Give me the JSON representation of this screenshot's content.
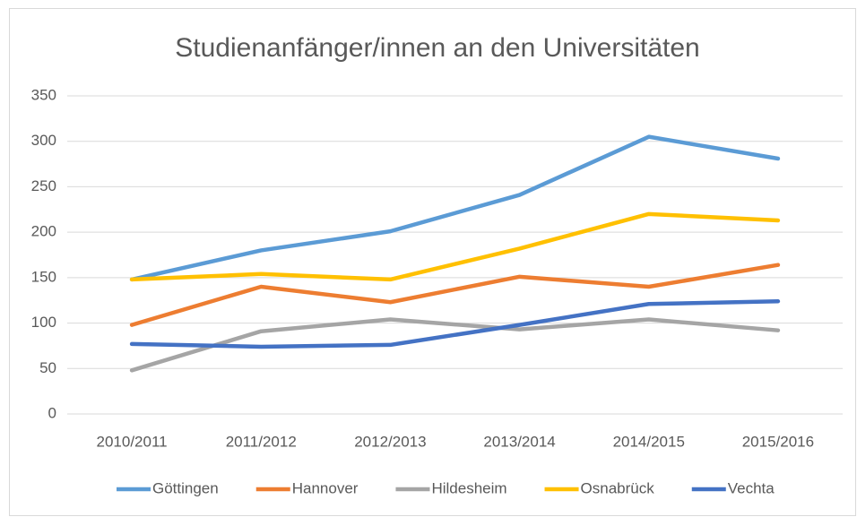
{
  "chart_data": {
    "type": "line",
    "title": "Studienanfänger/innen an den Universitäten",
    "categories": [
      "2010/2011",
      "2011/2012",
      "2012/2013",
      "2013/2014",
      "2014/2015",
      "2015/2016"
    ],
    "series": [
      {
        "name": "Göttingen",
        "color": "#5b9bd5",
        "values": [
          148,
          180,
          201,
          241,
          305,
          281
        ]
      },
      {
        "name": "Hannover",
        "color": "#ed7d31",
        "values": [
          98,
          140,
          123,
          151,
          140,
          164
        ]
      },
      {
        "name": "Hildesheim",
        "color": "#a5a5a5",
        "values": [
          48,
          91,
          104,
          93,
          104,
          92
        ]
      },
      {
        "name": "Osnabrück",
        "color": "#ffc000",
        "values": [
          148,
          154,
          148,
          182,
          220,
          213
        ]
      },
      {
        "name": "Vechta",
        "color": "#4472c4",
        "values": [
          77,
          74,
          76,
          98,
          121,
          124
        ]
      }
    ],
    "ylim": [
      0,
      350
    ],
    "yticks": [
      0,
      50,
      100,
      150,
      200,
      250,
      300,
      350
    ],
    "grid": true,
    "legend": "bottom"
  }
}
